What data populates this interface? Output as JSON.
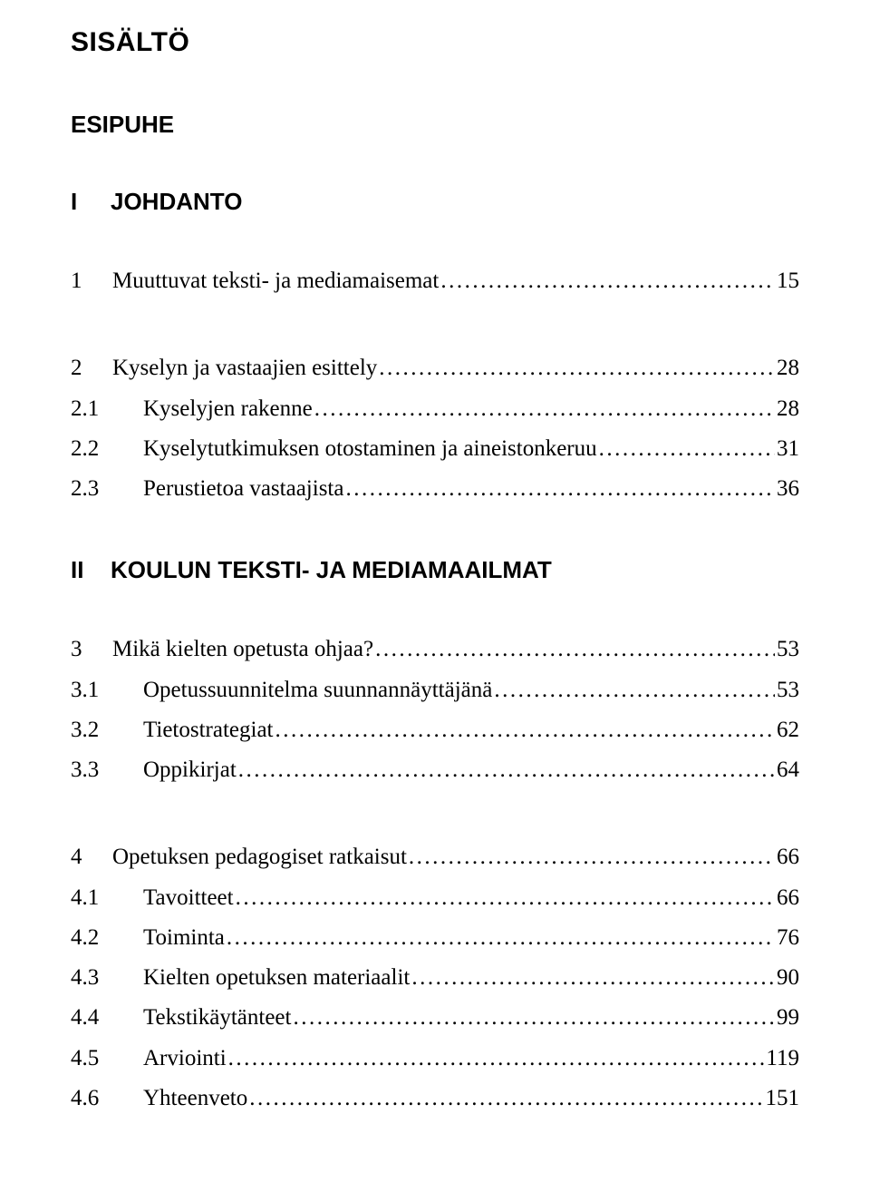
{
  "title": "SISÄLTÖ",
  "front_matter": [
    {
      "label": "ESIPUHE"
    }
  ],
  "parts": [
    {
      "num": "I",
      "label": "JOHDANTO",
      "sections": [
        {
          "num": "1",
          "label": "Muuttuvat teksti- ja mediamaisemat",
          "page": "15",
          "subs": []
        },
        {
          "num": "2",
          "label": "Kyselyn ja vastaajien esittely",
          "page": "28",
          "subs": [
            {
              "num": "2.1",
              "label": "Kyselyjen rakenne",
              "page": "28"
            },
            {
              "num": "2.2",
              "label": "Kyselytutkimuksen otostaminen ja aineistonkeruu",
              "page": "31"
            },
            {
              "num": "2.3",
              "label": "Perustietoa vastaajista",
              "page": "36"
            }
          ]
        }
      ]
    },
    {
      "num": "II",
      "label": "KOULUN TEKSTI- JA MEDIAMAAILMAT",
      "sections": [
        {
          "num": "3",
          "label": "Mikä kielten opetusta ohjaa?",
          "page": "53",
          "subs": [
            {
              "num": "3.1",
              "label": "Opetussuunnitelma suunnannäyttäjänä",
              "page": "53"
            },
            {
              "num": "3.2",
              "label": "Tietostrategiat",
              "page": "62"
            },
            {
              "num": "3.3",
              "label": "Oppikirjat",
              "page": "64"
            }
          ]
        },
        {
          "num": "4",
          "label": "Opetuksen pedagogiset ratkaisut",
          "page": "66",
          "subs": [
            {
              "num": "4.1",
              "label": "Tavoitteet",
              "page": "66"
            },
            {
              "num": "4.2",
              "label": "Toiminta",
              "page": "76"
            },
            {
              "num": "4.3",
              "label": "Kielten opetuksen materiaalit",
              "page": "90"
            },
            {
              "num": "4.4",
              "label": "Tekstikäytänteet",
              "page": "99"
            },
            {
              "num": "4.5",
              "label": "Arviointi",
              "page": "119"
            },
            {
              "num": "4.6",
              "label": "Yhteenveto",
              "page": "151"
            }
          ]
        }
      ]
    }
  ]
}
